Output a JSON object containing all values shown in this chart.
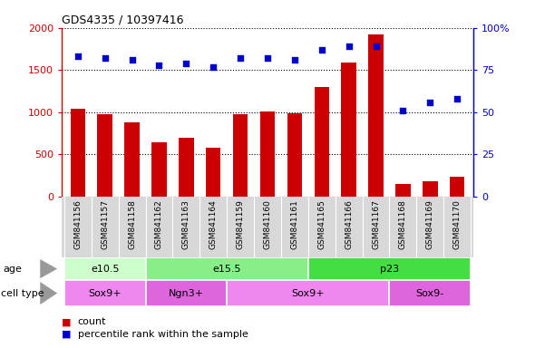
{
  "title": "GDS4335 / 10397416",
  "samples": [
    "GSM841156",
    "GSM841157",
    "GSM841158",
    "GSM841162",
    "GSM841163",
    "GSM841164",
    "GSM841159",
    "GSM841160",
    "GSM841161",
    "GSM841165",
    "GSM841166",
    "GSM841167",
    "GSM841168",
    "GSM841169",
    "GSM841170"
  ],
  "counts": [
    1040,
    980,
    880,
    645,
    700,
    580,
    980,
    1010,
    990,
    1300,
    1590,
    1920,
    155,
    185,
    235
  ],
  "percentiles": [
    83,
    82,
    81,
    78,
    79,
    77,
    82,
    82,
    81,
    87,
    89,
    89,
    51,
    56,
    58
  ],
  "ylim_left": [
    0,
    2000
  ],
  "ylim_right": [
    0,
    100
  ],
  "yticks_left": [
    0,
    500,
    1000,
    1500,
    2000
  ],
  "yticks_right": [
    0,
    25,
    50,
    75,
    100
  ],
  "bar_color": "#cc0000",
  "dot_color": "#0000cc",
  "age_groups": [
    {
      "label": "e10.5",
      "start": 0,
      "end": 3,
      "color": "#ccffcc"
    },
    {
      "label": "e15.5",
      "start": 3,
      "end": 9,
      "color": "#88ee88"
    },
    {
      "label": "p23",
      "start": 9,
      "end": 15,
      "color": "#44dd44"
    }
  ],
  "cell_groups": [
    {
      "label": "Sox9+",
      "start": 0,
      "end": 3,
      "color": "#ee88ee"
    },
    {
      "label": "Ngn3+",
      "start": 3,
      "end": 6,
      "color": "#dd66dd"
    },
    {
      "label": "Sox9+",
      "start": 6,
      "end": 12,
      "color": "#ee88ee"
    },
    {
      "label": "Sox9-",
      "start": 12,
      "end": 15,
      "color": "#dd66dd"
    }
  ],
  "legend_count_label": "count",
  "legend_pct_label": "percentile rank within the sample",
  "age_row_label": "age",
  "cell_row_label": "cell type",
  "plot_bg_color": "#ffffff",
  "xticklabel_bg": "#d8d8d8"
}
